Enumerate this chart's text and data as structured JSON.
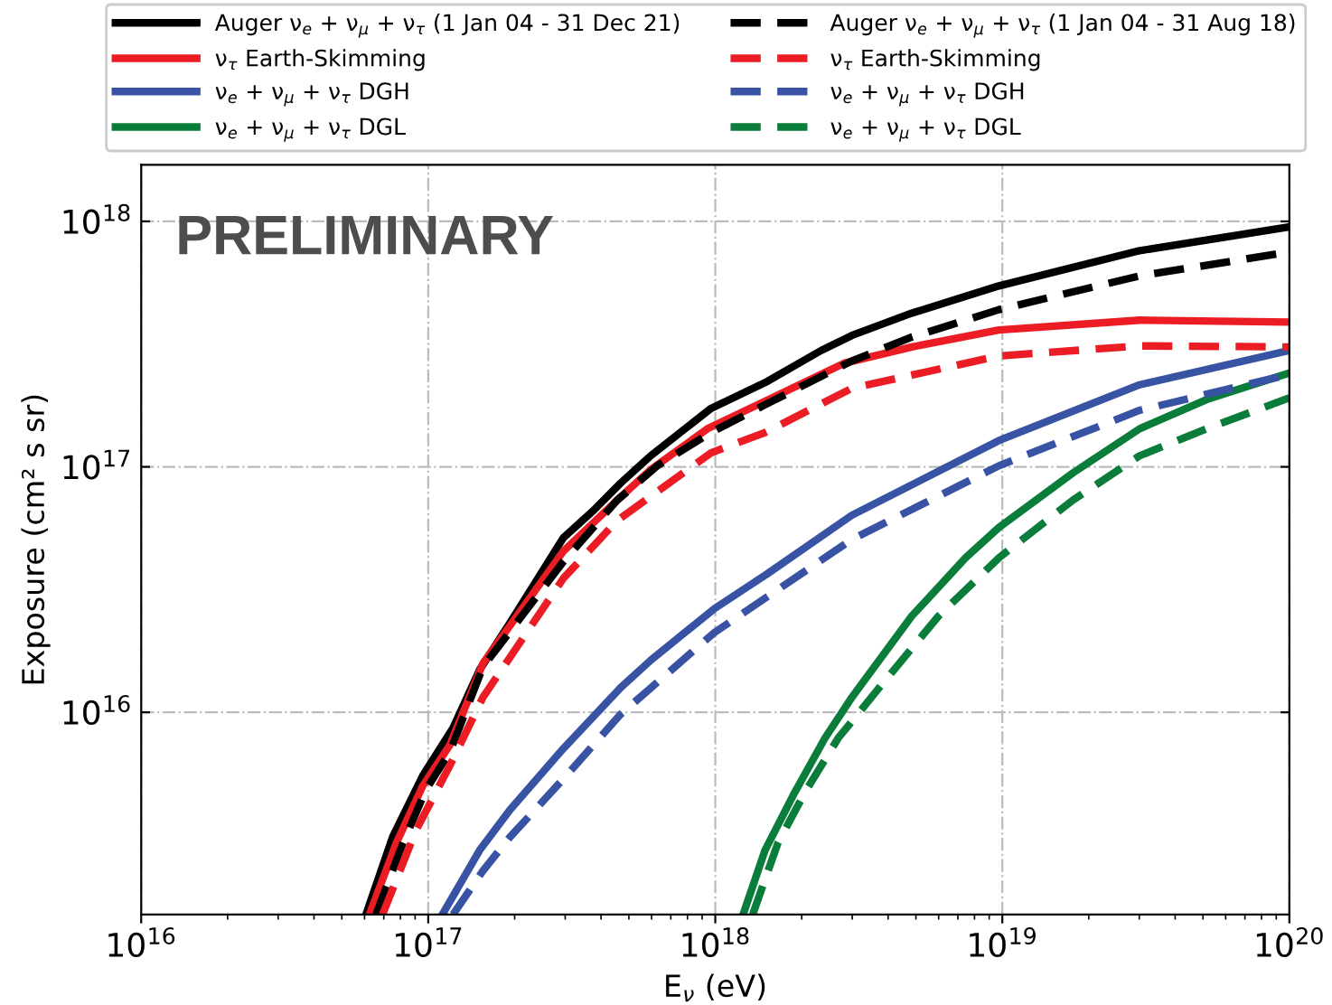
{
  "chart_data": {
    "type": "line",
    "log": "xy",
    "grid": true,
    "legend": "top",
    "xlabel": "E$_{ν}$ (eV)",
    "ylabel": "Exposure (cm² s sr)",
    "annotations": [
      "PRELIMINARY"
    ],
    "xlim": [
      1e+16,
      1e+20
    ],
    "ylim": [
      1500000000000000.0,
      1.7e+18
    ],
    "xticks": [
      {
        "value": 1e+16,
        "label": "10$^{16}$"
      },
      {
        "value": 1e+17,
        "label": "10$^{17}$"
      },
      {
        "value": 1e+18,
        "label": "10$^{18}$"
      },
      {
        "value": 1e+19,
        "label": "10$^{19}$"
      },
      {
        "value": 1e+20,
        "label": "10$^{20}$"
      }
    ],
    "yticks": [
      {
        "value": 1e+16,
        "label": "10$^{16}$"
      },
      {
        "value": 1e+17,
        "label": "10$^{17}$"
      },
      {
        "value": 1e+18,
        "label": "10$^{18}$"
      }
    ],
    "series": [
      {
        "name": "Auger ν$_{e}$ + ν$_{μ}$ + ν$_{τ}$ (1 Jan 04 - 31 Dec 21)",
        "color": "#000000",
        "line_style": "solid",
        "x": [
          6.07e+16,
          7.52e+16,
          9.57e+16,
          1.22e+17,
          1.51e+17,
          1.93e+17,
          2.96e+17,
          3.77e+17,
          4.68e+17,
          5.96e+17,
          9.66e+17,
          1.52e+18,
          2.34e+18,
          2.99e+18,
          4.84e+18,
          9.73e+18,
          3.01e+19,
          1e+20
        ],
        "values": [
          1500000000000000.0,
          3110000000000000.0,
          5520000000000000.0,
          8630000000000000.0,
          1.49e+16,
          2.32e+16,
          5.15e+16,
          6.65e+16,
          8.59e+16,
          1.11e+17,
          1.73e+17,
          2.23e+17,
          2.98e+17,
          3.43e+17,
          4.23e+17,
          5.46e+17,
          7.6e+17,
          9.5e+17
        ]
      },
      {
        "name": "ν$_{τ}$ Earth-Skimming",
        "color": "#ec1c24",
        "line_style": "solid",
        "x": [
          6.24e+16,
          7.73e+16,
          9.57e+16,
          1.19e+17,
          1.55e+17,
          2.96e+17,
          4.55e+17,
          5.96e+17,
          9.4e+17,
          1.49e+18,
          2.83e+18,
          4.84e+18,
          9.73e+18,
          3.01e+19,
          1e+20
        ],
        "values": [
          1500000000000000.0,
          2920000000000000.0,
          5020000000000000.0,
          7360000000000000.0,
          1.58e+16,
          4.54e+16,
          7.31e+16,
          9.75e+16,
          1.43e+17,
          1.85e+17,
          2.65e+17,
          3.08e+17,
          3.61e+17,
          3.96e+17,
          3.89e+17
        ]
      },
      {
        "name": "ν$_{e}$ + ν$_{μ}$ + ν$_{τ}$ DGH",
        "color": "#3953a4",
        "line_style": "solid",
        "x": [
          1.12e+17,
          1.51e+17,
          1.93e+17,
          2.96e+17,
          4.68e+17,
          5.96e+17,
          9.91e+17,
          1.52e+18,
          2.99e+18,
          9.73e+18,
          3.01e+19,
          1e+20
        ],
        "values": [
          1500000000000000.0,
          2740000000000000.0,
          4020000000000000.0,
          7130000000000000.0,
          1.26e+16,
          1.63e+16,
          2.64e+16,
          3.67e+16,
          6.35e+16,
          1.28e+17,
          2.16e+17,
          2.98e+17
        ]
      },
      {
        "name": "ν$_{e}$ + ν$_{μ}$ + ν$_{τ}$ DGL",
        "color": "#0a7d3b",
        "line_style": "solid",
        "x": [
          1.25e+18,
          1.49e+18,
          1.89e+18,
          2.41e+18,
          2.99e+18,
          4.84e+18,
          7.45e+18,
          9.73e+18,
          1.76e+19,
          3.01e+19,
          5.15e+19,
          1e+20
        ],
        "values": [
          1500000000000000.0,
          2740000000000000.0,
          4710000000000000.0,
          7850000000000000.0,
          1.15e+16,
          2.47e+16,
          4.26e+16,
          5.66e+16,
          9.44e+16,
          1.43e+17,
          1.88e+17,
          2.41e+17
        ]
      },
      {
        "name": "Auger ν$_{e}$ + ν$_{μ}$ + ν$_{τ}$ (1 Jan 04 - 31 Aug 18)",
        "color": "#000000",
        "line_style": "dashed",
        "x": [
          6.58e+16,
          8.15e+16,
          9.84e+16,
          1.19e+17,
          1.55e+17,
          2.96e+17,
          4.55e+17,
          6.28e+17,
          9.66e+17,
          1.49e+18,
          2.99e+18,
          4.84e+18,
          9.73e+18,
          3.01e+19,
          1e+20
        ],
        "values": [
          1500000000000000.0,
          2920000000000000.0,
          4860000000000000.0,
          6900000000000000.0,
          1.53e+16,
          4.12e+16,
          7.31e+16,
          1.01e+17,
          1.38e+17,
          1.79e+17,
          2.7e+17,
          3.38e+17,
          4.37e+17,
          6e+17,
          7.5e+17
        ]
      },
      {
        "name": "ν$_{τ}$ Earth-Skimming",
        "color": "#ec1c24",
        "line_style": "dashed",
        "x": [
          6.93e+16,
          9.08e+16,
          1.19e+17,
          1.55e+17,
          2.96e+17,
          4.55e+17,
          9.66e+17,
          1.49e+18,
          2.99e+18,
          9.73e+18,
          3.01e+19,
          1e+20
        ],
        "values": [
          1500000000000000.0,
          3320000000000000.0,
          6080000000000000.0,
          1.15e+16,
          3.52e+16,
          6.04e+16,
          1.14e+17,
          1.38e+17,
          2.09e+17,
          2.83e+17,
          3.11e+17,
          3.08e+17
        ]
      },
      {
        "name": "ν$_{e}$ + ν$_{μ}$ + ν$_{τ}$ DGH",
        "color": "#3953a4",
        "line_style": "dashed",
        "x": [
          1.22e+17,
          1.55e+17,
          1.93e+17,
          2.96e+17,
          4.68e+17,
          9.91e+17,
          2.99e+18,
          9.73e+18,
          3.01e+19,
          1e+20
        ],
        "values": [
          1500000000000000.0,
          2260000000000000.0,
          3110000000000000.0,
          5360000000000000.0,
          9820000000000000.0,
          2.11e+16,
          5.06e+16,
          1.01e+17,
          1.7e+17,
          2.38e+17
        ]
      },
      {
        "name": "ν$_{e}$ + ν$_{μ}$ + ν$_{τ}$ DGL",
        "color": "#0a7d3b",
        "line_style": "dashed",
        "x": [
          1.35e+18,
          1.65e+18,
          2.05e+18,
          2.68e+18,
          3.91e+18,
          6e+18,
          9.73e+18,
          1.76e+19,
          3.01e+19,
          5.15e+19,
          1e+20
        ],
        "values": [
          1500000000000000.0,
          2920000000000000.0,
          4710000000000000.0,
          7850000000000000.0,
          1.35e+16,
          2.47e+16,
          4.26e+16,
          7.31e+16,
          1.11e+17,
          1.43e+17,
          1.91e+17
        ]
      }
    ]
  }
}
